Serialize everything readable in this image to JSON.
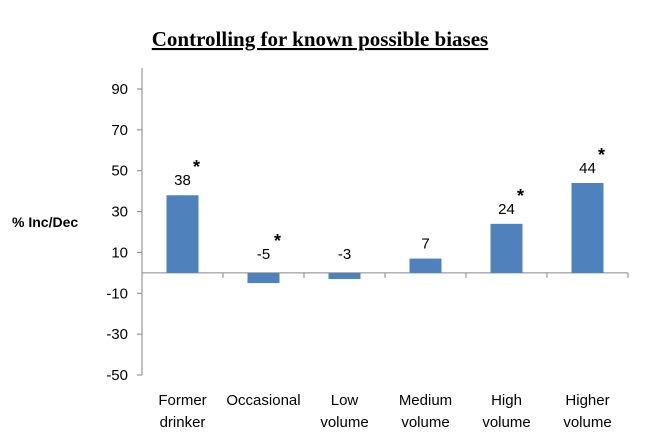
{
  "chart_data": {
    "type": "bar",
    "title": "Controlling for known possible biases",
    "ylabel": "% Inc/Dec",
    "xlabel": "",
    "ylim": [
      -50,
      90
    ],
    "yticks": [
      90,
      70,
      50,
      30,
      10,
      -10,
      -30,
      -50
    ],
    "grid": false,
    "categories": [
      [
        "Former",
        "drinker"
      ],
      [
        "Occasional"
      ],
      [
        "Low",
        "volume"
      ],
      [
        "Medium",
        "volume"
      ],
      [
        "High",
        "volume"
      ],
      [
        "Higher",
        "volume"
      ]
    ],
    "values": [
      38,
      -5,
      -3,
      7,
      24,
      44
    ],
    "data_labels": [
      "38",
      "-5",
      "-3",
      "7",
      "24",
      "44"
    ],
    "significant": [
      true,
      true,
      false,
      false,
      true,
      true
    ],
    "significance_marker": "*",
    "bar_color": "#4f81bd"
  }
}
